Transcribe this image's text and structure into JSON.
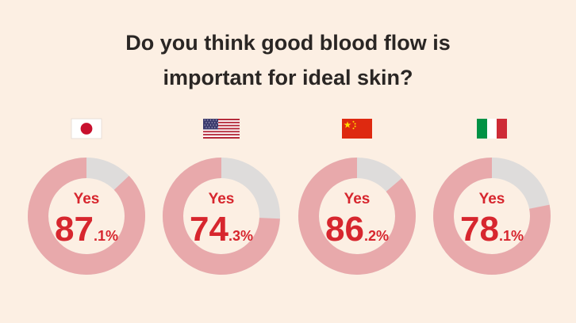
{
  "title_lines": [
    "Do you think good blood flow is",
    "important for ideal skin?"
  ],
  "colors": {
    "background": "#fcefe3",
    "yes": "#e8a9ab",
    "other": "#dedcdb",
    "number": "#d7262e",
    "title": "#2a2624"
  },
  "chart_data": {
    "type": "pie",
    "style": "donut",
    "title": "Do you think good blood flow is important for ideal skin?",
    "series": [
      {
        "country_flag": "Japan",
        "label": "Yes",
        "whole": "87",
        "decimal": ".1%",
        "value": 87.1
      },
      {
        "country_flag": "United States",
        "label": "Yes",
        "whole": "74",
        "decimal": ".3%",
        "value": 74.3
      },
      {
        "country_flag": "China",
        "label": "Yes",
        "whole": "86",
        "decimal": ".2%",
        "value": 86.2
      },
      {
        "country_flag": "Italy",
        "label": "Yes",
        "whole": "78",
        "decimal": ".1%",
        "value": 78.1
      }
    ]
  }
}
